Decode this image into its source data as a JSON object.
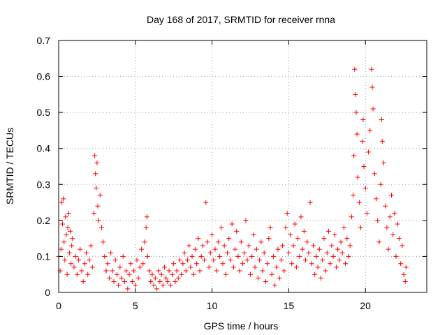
{
  "chart_data": {
    "type": "scatter",
    "title": "Day 168 of 2017, SRMTID for receiver rnna",
    "xlabel": "GPS time / hours",
    "ylabel": "SRMTID / TECUs",
    "xlim": [
      0,
      24
    ],
    "ylim": [
      0,
      0.7
    ],
    "xticks": [
      0,
      5,
      10,
      15,
      20
    ],
    "xtick_labels": [
      "0",
      "5",
      "10",
      "15",
      "20"
    ],
    "yticks": [
      0,
      0.1,
      0.2,
      0.3,
      0.4,
      0.5,
      0.6,
      0.7
    ],
    "ytick_labels": [
      "0",
      "0.1",
      "0.2",
      "0.3",
      "0.4",
      "0.5",
      "0.6",
      "0.7"
    ],
    "grid": true,
    "marker": "+",
    "color": "#ff0000",
    "series": [
      {
        "name": "SRMTID",
        "points": [
          [
            0.0,
            0.1
          ],
          [
            0.1,
            0.06
          ],
          [
            0.15,
            0.12
          ],
          [
            0.2,
            0.25
          ],
          [
            0.25,
            0.19
          ],
          [
            0.3,
            0.26
          ],
          [
            0.35,
            0.14
          ],
          [
            0.4,
            0.09
          ],
          [
            0.45,
            0.21
          ],
          [
            0.5,
            0.16
          ],
          [
            0.55,
            0.05
          ],
          [
            0.6,
            0.18
          ],
          [
            0.65,
            0.22
          ],
          [
            0.7,
            0.11
          ],
          [
            0.75,
            0.17
          ],
          [
            0.8,
            0.08
          ],
          [
            0.85,
            0.13
          ],
          [
            0.9,
            0.15
          ],
          [
            1.0,
            0.07
          ],
          [
            1.1,
            0.1
          ],
          [
            1.2,
            0.05
          ],
          [
            1.3,
            0.09
          ],
          [
            1.4,
            0.12
          ],
          [
            1.5,
            0.06
          ],
          [
            1.6,
            0.03
          ],
          [
            1.7,
            0.08
          ],
          [
            1.8,
            0.11
          ],
          [
            1.9,
            0.05
          ],
          [
            2.0,
            0.09
          ],
          [
            2.1,
            0.13
          ],
          [
            2.2,
            0.07
          ],
          [
            2.3,
            0.22
          ],
          [
            2.35,
            0.38
          ],
          [
            2.4,
            0.33
          ],
          [
            2.45,
            0.29
          ],
          [
            2.5,
            0.36
          ],
          [
            2.55,
            0.24
          ],
          [
            2.6,
            0.2
          ],
          [
            2.7,
            0.27
          ],
          [
            2.8,
            0.18
          ],
          [
            2.9,
            0.14
          ],
          [
            3.0,
            0.1
          ],
          [
            3.1,
            0.06
          ],
          [
            3.2,
            0.08
          ],
          [
            3.3,
            0.04
          ],
          [
            3.4,
            0.11
          ],
          [
            3.5,
            0.06
          ],
          [
            3.6,
            0.03
          ],
          [
            3.7,
            0.09
          ],
          [
            3.8,
            0.05
          ],
          [
            3.9,
            0.02
          ],
          [
            4.0,
            0.07
          ],
          [
            4.1,
            0.04
          ],
          [
            4.2,
            0.1
          ],
          [
            4.3,
            0.03
          ],
          [
            4.4,
            0.06
          ],
          [
            4.5,
            0.01
          ],
          [
            4.6,
            0.05
          ],
          [
            4.7,
            0.08
          ],
          [
            4.8,
            0.03
          ],
          [
            4.9,
            0.06
          ],
          [
            5.0,
            0.02
          ],
          [
            5.1,
            0.09
          ],
          [
            5.2,
            0.04
          ],
          [
            5.3,
            0.07
          ],
          [
            5.4,
            0.12
          ],
          [
            5.5,
            0.08
          ],
          [
            5.6,
            0.14
          ],
          [
            5.7,
            0.18
          ],
          [
            5.75,
            0.21
          ],
          [
            5.8,
            0.1
          ],
          [
            5.9,
            0.06
          ],
          [
            6.0,
            0.03
          ],
          [
            6.1,
            0.05
          ],
          [
            6.2,
            0.02
          ],
          [
            6.3,
            0.04
          ],
          [
            6.4,
            0.01
          ],
          [
            6.5,
            0.06
          ],
          [
            6.6,
            0.03
          ],
          [
            6.7,
            0.05
          ],
          [
            6.8,
            0.02
          ],
          [
            6.9,
            0.07
          ],
          [
            7.0,
            0.04
          ],
          [
            7.1,
            0.03
          ],
          [
            7.2,
            0.06
          ],
          [
            7.3,
            0.02
          ],
          [
            7.4,
            0.05
          ],
          [
            7.5,
            0.08
          ],
          [
            7.6,
            0.03
          ],
          [
            7.7,
            0.06
          ],
          [
            7.8,
            0.04
          ],
          [
            7.9,
            0.09
          ],
          [
            8.0,
            0.05
          ],
          [
            8.1,
            0.08
          ],
          [
            8.2,
            0.11
          ],
          [
            8.3,
            0.06
          ],
          [
            8.4,
            0.09
          ],
          [
            8.5,
            0.13
          ],
          [
            8.6,
            0.07
          ],
          [
            8.7,
            0.1
          ],
          [
            8.8,
            0.05
          ],
          [
            8.9,
            0.12
          ],
          [
            9.0,
            0.08
          ],
          [
            9.1,
            0.15
          ],
          [
            9.2,
            0.06
          ],
          [
            9.3,
            0.1
          ],
          [
            9.4,
            0.13
          ],
          [
            9.5,
            0.09
          ],
          [
            9.6,
            0.25
          ],
          [
            9.7,
            0.14
          ],
          [
            9.8,
            0.07
          ],
          [
            9.9,
            0.11
          ],
          [
            10.0,
            0.16
          ],
          [
            10.1,
            0.09
          ],
          [
            10.2,
            0.12
          ],
          [
            10.3,
            0.06
          ],
          [
            10.4,
            0.14
          ],
          [
            10.5,
            0.1
          ],
          [
            10.6,
            0.18
          ],
          [
            10.7,
            0.08
          ],
          [
            10.8,
            0.13
          ],
          [
            10.9,
            0.05
          ],
          [
            11.0,
            0.11
          ],
          [
            11.1,
            0.15
          ],
          [
            11.2,
            0.09
          ],
          [
            11.3,
            0.19
          ],
          [
            11.4,
            0.07
          ],
          [
            11.5,
            0.12
          ],
          [
            11.6,
            0.17
          ],
          [
            11.7,
            0.1
          ],
          [
            11.8,
            0.06
          ],
          [
            11.9,
            0.14
          ],
          [
            12.0,
            0.08
          ],
          [
            12.1,
            0.11
          ],
          [
            12.2,
            0.2
          ],
          [
            12.3,
            0.09
          ],
          [
            12.4,
            0.13
          ],
          [
            12.5,
            0.05
          ],
          [
            12.6,
            0.1
          ],
          [
            12.7,
            0.16
          ],
          [
            12.8,
            0.07
          ],
          [
            12.9,
            0.12
          ],
          [
            13.0,
            0.04
          ],
          [
            13.1,
            0.09
          ],
          [
            13.2,
            0.14
          ],
          [
            13.3,
            0.06
          ],
          [
            13.4,
            0.11
          ],
          [
            13.5,
            0.03
          ],
          [
            13.6,
            0.08
          ],
          [
            13.7,
            0.15
          ],
          [
            13.8,
            0.18
          ],
          [
            13.9,
            0.05
          ],
          [
            14.0,
            0.1
          ],
          [
            14.1,
            0.02
          ],
          [
            14.2,
            0.07
          ],
          [
            14.3,
            0.12
          ],
          [
            14.4,
            0.04
          ],
          [
            14.5,
            0.09
          ],
          [
            14.6,
            0.13
          ],
          [
            14.7,
            0.06
          ],
          [
            14.8,
            0.18
          ],
          [
            14.9,
            0.22
          ],
          [
            15.0,
            0.11
          ],
          [
            15.1,
            0.16
          ],
          [
            15.2,
            0.08
          ],
          [
            15.3,
            0.13
          ],
          [
            15.4,
            0.19
          ],
          [
            15.5,
            0.07
          ],
          [
            15.6,
            0.15
          ],
          [
            15.7,
            0.1
          ],
          [
            15.8,
            0.21
          ],
          [
            15.9,
            0.12
          ],
          [
            16.0,
            0.17
          ],
          [
            16.1,
            0.09
          ],
          [
            16.2,
            0.14
          ],
          [
            16.3,
            0.11
          ],
          [
            16.4,
            0.25
          ],
          [
            16.5,
            0.08
          ],
          [
            16.6,
            0.13
          ],
          [
            16.7,
            0.05
          ],
          [
            16.8,
            0.1
          ],
          [
            16.9,
            0.07
          ],
          [
            17.0,
            0.12
          ],
          [
            17.1,
            0.04
          ],
          [
            17.2,
            0.09
          ],
          [
            17.3,
            0.15
          ],
          [
            17.4,
            0.06
          ],
          [
            17.5,
            0.11
          ],
          [
            17.6,
            0.17
          ],
          [
            17.7,
            0.08
          ],
          [
            17.8,
            0.13
          ],
          [
            17.9,
            0.1
          ],
          [
            18.0,
            0.16
          ],
          [
            18.1,
            0.07
          ],
          [
            18.2,
            0.12
          ],
          [
            18.3,
            0.09
          ],
          [
            18.4,
            0.14
          ],
          [
            18.5,
            0.11
          ],
          [
            18.6,
            0.18
          ],
          [
            18.7,
            0.08
          ],
          [
            18.8,
            0.15
          ],
          [
            18.9,
            0.1
          ],
          [
            19.0,
            0.13
          ],
          [
            19.1,
            0.21
          ],
          [
            19.2,
            0.27
          ],
          [
            19.25,
            0.38
          ],
          [
            19.3,
            0.62
          ],
          [
            19.35,
            0.55
          ],
          [
            19.4,
            0.5
          ],
          [
            19.45,
            0.44
          ],
          [
            19.5,
            0.32
          ],
          [
            19.6,
            0.25
          ],
          [
            19.7,
            0.18
          ],
          [
            19.8,
            0.42
          ],
          [
            19.85,
            0.48
          ],
          [
            19.9,
            0.35
          ],
          [
            20.0,
            0.29
          ],
          [
            20.1,
            0.22
          ],
          [
            20.2,
            0.39
          ],
          [
            20.3,
            0.45
          ],
          [
            20.4,
            0.62
          ],
          [
            20.45,
            0.57
          ],
          [
            20.5,
            0.51
          ],
          [
            20.6,
            0.33
          ],
          [
            20.7,
            0.26
          ],
          [
            20.8,
            0.2
          ],
          [
            20.9,
            0.14
          ],
          [
            21.0,
            0.3
          ],
          [
            21.05,
            0.48
          ],
          [
            21.1,
            0.42
          ],
          [
            21.2,
            0.36
          ],
          [
            21.3,
            0.24
          ],
          [
            21.4,
            0.18
          ],
          [
            21.5,
            0.12
          ],
          [
            21.6,
            0.21
          ],
          [
            21.7,
            0.27
          ],
          [
            21.8,
            0.16
          ],
          [
            21.9,
            0.22
          ],
          [
            22.0,
            0.1
          ],
          [
            22.1,
            0.19
          ],
          [
            22.2,
            0.15
          ],
          [
            22.3,
            0.08
          ],
          [
            22.4,
            0.13
          ],
          [
            22.5,
            0.05
          ],
          [
            22.6,
            0.03
          ],
          [
            22.65,
            0.07
          ]
        ]
      }
    ]
  }
}
